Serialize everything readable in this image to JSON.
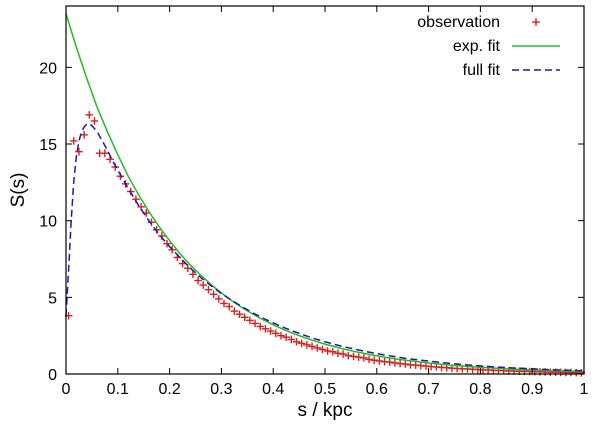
{
  "chart_data": {
    "type": "scatter",
    "xlabel": "s / kpc",
    "ylabel": "S(s)",
    "xlim": [
      0,
      1
    ],
    "ylim": [
      0,
      24
    ],
    "x_ticks": [
      0,
      0.1,
      0.2,
      0.3,
      0.4,
      0.5,
      0.6,
      0.7,
      0.8,
      0.9,
      1
    ],
    "x_tick_labels": [
      "0",
      "0.1",
      "0.2",
      "0.3",
      "0.4",
      "0.5",
      "0.6",
      "0.7",
      "0.8",
      "0.9",
      "1"
    ],
    "y_ticks": [
      0,
      5,
      10,
      15,
      20
    ],
    "y_tick_labels": [
      "0",
      "5",
      "10",
      "15",
      "20"
    ],
    "grid": false,
    "legend_position": "top-right",
    "series": [
      {
        "name": "observation",
        "style": "marker-plus",
        "color": "#d62020",
        "x": [
          0.005,
          0.015,
          0.025,
          0.035,
          0.045,
          0.055,
          0.065,
          0.075,
          0.085,
          0.095,
          0.105,
          0.115,
          0.125,
          0.135,
          0.145,
          0.155,
          0.165,
          0.175,
          0.185,
          0.195,
          0.205,
          0.215,
          0.225,
          0.235,
          0.245,
          0.255,
          0.265,
          0.275,
          0.285,
          0.295,
          0.305,
          0.315,
          0.325,
          0.335,
          0.345,
          0.355,
          0.365,
          0.375,
          0.385,
          0.395,
          0.405,
          0.415,
          0.425,
          0.435,
          0.445,
          0.455,
          0.465,
          0.475,
          0.485,
          0.495,
          0.505,
          0.515,
          0.525,
          0.535,
          0.545,
          0.555,
          0.565,
          0.575,
          0.585,
          0.595,
          0.605,
          0.615,
          0.625,
          0.635,
          0.645,
          0.655,
          0.665,
          0.675,
          0.685,
          0.695,
          0.705,
          0.715,
          0.725,
          0.735,
          0.745,
          0.755,
          0.765,
          0.775,
          0.785,
          0.795,
          0.805,
          0.815,
          0.825,
          0.835,
          0.845,
          0.855,
          0.865,
          0.875,
          0.885,
          0.895,
          0.905,
          0.915,
          0.925,
          0.935,
          0.945,
          0.955,
          0.965,
          0.975,
          0.985,
          0.995
        ],
        "y": [
          3.8,
          15.2,
          14.5,
          15.6,
          16.9,
          16.5,
          14.4,
          14.4,
          14.0,
          13.5,
          12.9,
          12.4,
          11.9,
          11.4,
          10.9,
          10.5,
          9.9,
          9.4,
          9.0,
          8.5,
          8.1,
          7.6,
          7.2,
          6.9,
          6.5,
          6.1,
          5.8,
          5.5,
          5.2,
          4.9,
          4.6,
          4.4,
          4.1,
          3.9,
          3.7,
          3.5,
          3.3,
          3.1,
          2.95,
          2.8,
          2.65,
          2.5,
          2.4,
          2.25,
          2.1,
          2.0,
          1.9,
          1.8,
          1.7,
          1.6,
          1.5,
          1.45,
          1.35,
          1.3,
          1.2,
          1.15,
          1.1,
          1.05,
          0.95,
          0.9,
          0.85,
          0.8,
          0.78,
          0.72,
          0.68,
          0.65,
          0.6,
          0.58,
          0.55,
          0.52,
          0.48,
          0.46,
          0.43,
          0.41,
          0.38,
          0.36,
          0.34,
          0.33,
          0.31,
          0.29,
          0.27,
          0.26,
          0.24,
          0.23,
          0.22,
          0.2,
          0.19,
          0.18,
          0.17,
          0.16,
          0.15,
          0.14,
          0.13,
          0.12,
          0.12,
          0.11,
          0.1,
          0.1,
          0.09,
          0.08
        ]
      },
      {
        "name": "exp. fit",
        "style": "solid",
        "color": "#22bb22",
        "x": [
          0,
          0.02,
          0.04,
          0.06,
          0.08,
          0.1,
          0.12,
          0.14,
          0.16,
          0.18,
          0.2,
          0.22,
          0.24,
          0.26,
          0.28,
          0.3,
          0.32,
          0.34,
          0.36,
          0.38,
          0.4,
          0.42,
          0.44,
          0.46,
          0.48,
          0.5,
          0.52,
          0.54,
          0.56,
          0.58,
          0.6,
          0.62,
          0.64,
          0.66,
          0.68,
          0.7,
          0.72,
          0.74,
          0.76,
          0.78,
          0.8,
          0.82,
          0.84,
          0.86,
          0.88,
          0.9,
          0.92,
          0.94,
          0.96,
          0.98,
          1
        ],
        "y": [
          23.5,
          21.3,
          19.3,
          17.4,
          15.8,
          14.3,
          12.9,
          11.7,
          10.6,
          9.6,
          8.7,
          7.85,
          7.1,
          6.45,
          5.83,
          5.28,
          4.78,
          4.33,
          3.92,
          3.55,
          3.21,
          2.91,
          2.63,
          2.38,
          2.16,
          1.95,
          1.77,
          1.6,
          1.45,
          1.31,
          1.19,
          1.07,
          0.97,
          0.88,
          0.8,
          0.72,
          0.65,
          0.59,
          0.53,
          0.48,
          0.44,
          0.4,
          0.36,
          0.32,
          0.29,
          0.27,
          0.24,
          0.22,
          0.2,
          0.18,
          0.16
        ]
      },
      {
        "name": "full fit",
        "style": "dashed",
        "color": "#1a1aa8",
        "x": [
          0,
          0.005,
          0.01,
          0.015,
          0.02,
          0.025,
          0.03,
          0.035,
          0.04,
          0.045,
          0.05,
          0.055,
          0.06,
          0.07,
          0.08,
          0.09,
          0.1,
          0.12,
          0.14,
          0.16,
          0.18,
          0.2,
          0.22,
          0.24,
          0.26,
          0.28,
          0.3,
          0.32,
          0.34,
          0.36,
          0.38,
          0.4,
          0.42,
          0.44,
          0.46,
          0.48,
          0.5,
          0.52,
          0.54,
          0.56,
          0.58,
          0.6,
          0.62,
          0.64,
          0.66,
          0.68,
          0.7,
          0.72,
          0.74,
          0.76,
          0.78,
          0.8,
          0.82,
          0.84,
          0.86,
          0.88,
          0.9,
          0.92,
          0.94,
          0.96,
          0.98,
          1
        ],
        "y": [
          3.8,
          6.8,
          10.0,
          12.6,
          14.2,
          15.2,
          15.8,
          16.1,
          16.3,
          16.3,
          16.2,
          16.0,
          15.8,
          15.2,
          14.6,
          13.9,
          13.3,
          12.1,
          11.0,
          10.0,
          9.1,
          8.3,
          7.6,
          6.9,
          6.3,
          5.75,
          5.25,
          4.8,
          4.38,
          4.0,
          3.65,
          3.33,
          3.04,
          2.77,
          2.53,
          2.3,
          2.1,
          1.92,
          1.75,
          1.6,
          1.46,
          1.33,
          1.21,
          1.1,
          1.0,
          0.92,
          0.84,
          0.76,
          0.7,
          0.63,
          0.58,
          0.53,
          0.48,
          0.44,
          0.4,
          0.37,
          0.33,
          0.3,
          0.28,
          0.25,
          0.23,
          0.21
        ]
      }
    ]
  }
}
